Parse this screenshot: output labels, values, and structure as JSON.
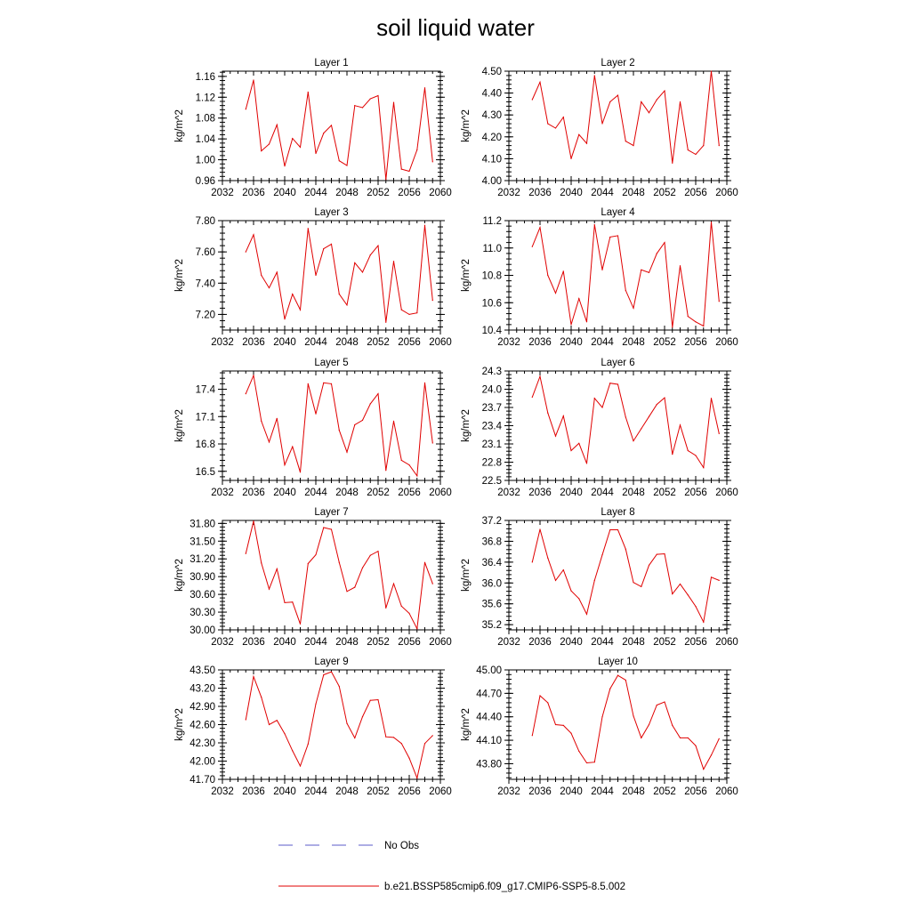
{
  "figure": {
    "title": "soil liquid water"
  },
  "legend": {
    "obs_label": "No Obs",
    "model_label": "b.e21.BSSP585cmip6.f09_g17.CMIP6-SSP5-8.5.002",
    "obs_color": "#5b5bc8",
    "model_color": "#e00000"
  },
  "chart_data": [
    {
      "type": "line",
      "title": "Layer 1",
      "ylabel": "kg/m^2",
      "xlim": [
        2032,
        2060
      ],
      "ylim": [
        0.96,
        1.17
      ],
      "xticks": [
        "2032",
        "2036",
        "2040",
        "2044",
        "2048",
        "2052",
        "2056",
        "2060"
      ],
      "yticks": [
        "0.96",
        "1.00",
        "1.04",
        "1.08",
        "1.12",
        "1.16"
      ],
      "x": [
        2035,
        2036,
        2037,
        2038,
        2039,
        2040,
        2041,
        2042,
        2043,
        2044,
        2045,
        2046,
        2047,
        2048,
        2049,
        2050,
        2051,
        2052,
        2053,
        2054,
        2055,
        2056,
        2057,
        2058,
        2059
      ],
      "values": [
        1.097,
        1.153,
        1.017,
        1.03,
        1.067,
        0.988,
        1.041,
        1.024,
        1.13,
        1.012,
        1.051,
        1.066,
        0.998,
        0.989,
        1.104,
        1.1,
        1.117,
        1.123,
        0.962,
        1.11,
        0.982,
        0.978,
        1.019,
        1.138,
        0.996
      ]
    },
    {
      "type": "line",
      "title": "Layer 2",
      "ylabel": "kg/m^2",
      "xlim": [
        2032,
        2060
      ],
      "ylim": [
        4.0,
        4.5
      ],
      "xticks": [
        "2032",
        "2036",
        "2040",
        "2044",
        "2048",
        "2052",
        "2056",
        "2060"
      ],
      "yticks": [
        "4.00",
        "4.10",
        "4.20",
        "4.30",
        "4.40",
        "4.50"
      ],
      "x": [
        2035,
        2036,
        2037,
        2038,
        2039,
        2040,
        2041,
        2042,
        2043,
        2044,
        2045,
        2046,
        2047,
        2048,
        2049,
        2050,
        2051,
        2052,
        2053,
        2054,
        2055,
        2056,
        2057,
        2058,
        2059
      ],
      "values": [
        4.37,
        4.45,
        4.26,
        4.24,
        4.29,
        4.1,
        4.21,
        4.17,
        4.48,
        4.26,
        4.36,
        4.39,
        4.18,
        4.16,
        4.36,
        4.31,
        4.37,
        4.41,
        4.08,
        4.36,
        4.14,
        4.12,
        4.16,
        4.5,
        4.16
      ]
    },
    {
      "type": "line",
      "title": "Layer 3",
      "ylabel": "kg/m^2",
      "xlim": [
        2032,
        2060
      ],
      "ylim": [
        7.1,
        7.8
      ],
      "xticks": [
        "2032",
        "2036",
        "2040",
        "2044",
        "2048",
        "2052",
        "2056",
        "2060"
      ],
      "yticks": [
        "7.20",
        "7.40",
        "7.60",
        "7.80"
      ],
      "x": [
        2035,
        2036,
        2037,
        2038,
        2039,
        2040,
        2041,
        2042,
        2043,
        2044,
        2045,
        2046,
        2047,
        2048,
        2049,
        2050,
        2051,
        2052,
        2053,
        2054,
        2055,
        2056,
        2057,
        2058,
        2059
      ],
      "values": [
        7.6,
        7.71,
        7.45,
        7.37,
        7.47,
        7.17,
        7.33,
        7.23,
        7.75,
        7.45,
        7.62,
        7.65,
        7.33,
        7.26,
        7.53,
        7.47,
        7.58,
        7.64,
        7.15,
        7.54,
        7.23,
        7.2,
        7.21,
        7.77,
        7.29
      ]
    },
    {
      "type": "line",
      "title": "Layer 4",
      "ylabel": "kg/m^2",
      "xlim": [
        2032,
        2060
      ],
      "ylim": [
        10.4,
        11.2
      ],
      "xticks": [
        "2032",
        "2036",
        "2040",
        "2044",
        "2048",
        "2052",
        "2056",
        "2060"
      ],
      "yticks": [
        "10.4",
        "10.6",
        "10.8",
        "11.0",
        "11.2"
      ],
      "x": [
        2035,
        2036,
        2037,
        2038,
        2039,
        2040,
        2041,
        2042,
        2043,
        2044,
        2045,
        2046,
        2047,
        2048,
        2049,
        2050,
        2051,
        2052,
        2053,
        2054,
        2055,
        2056,
        2057,
        2058,
        2059
      ],
      "values": [
        11.01,
        11.15,
        10.8,
        10.67,
        10.83,
        10.44,
        10.63,
        10.46,
        11.17,
        10.84,
        11.08,
        11.09,
        10.69,
        10.56,
        10.84,
        10.82,
        10.96,
        11.04,
        10.42,
        10.87,
        10.5,
        10.46,
        10.43,
        11.19,
        10.61
      ]
    },
    {
      "type": "line",
      "title": "Layer 5",
      "ylabel": "kg/m^2",
      "xlim": [
        2032,
        2060
      ],
      "ylim": [
        16.4,
        17.6
      ],
      "xticks": [
        "2032",
        "2036",
        "2040",
        "2044",
        "2048",
        "2052",
        "2056",
        "2060"
      ],
      "yticks": [
        "16.5",
        "16.8",
        "17.1",
        "17.4"
      ],
      "x": [
        2035,
        2036,
        2037,
        2038,
        2039,
        2040,
        2041,
        2042,
        2043,
        2044,
        2045,
        2046,
        2047,
        2048,
        2049,
        2050,
        2051,
        2052,
        2053,
        2054,
        2055,
        2056,
        2057,
        2058,
        2059
      ],
      "values": [
        17.35,
        17.55,
        17.05,
        16.82,
        17.08,
        16.57,
        16.77,
        16.49,
        17.46,
        17.13,
        17.47,
        17.46,
        16.95,
        16.71,
        17.01,
        17.06,
        17.24,
        17.35,
        16.51,
        17.05,
        16.62,
        16.57,
        16.45,
        17.47,
        16.81
      ]
    },
    {
      "type": "line",
      "title": "Layer 6",
      "ylabel": "kg/m^2",
      "xlim": [
        2032,
        2060
      ],
      "ylim": [
        22.5,
        24.3
      ],
      "xticks": [
        "2032",
        "2036",
        "2040",
        "2044",
        "2048",
        "2052",
        "2056",
        "2060"
      ],
      "yticks": [
        "22.5",
        "22.8",
        "23.1",
        "23.4",
        "23.7",
        "24.0",
        "24.3"
      ],
      "x": [
        2035,
        2036,
        2037,
        2038,
        2039,
        2040,
        2041,
        2042,
        2043,
        2044,
        2045,
        2046,
        2047,
        2048,
        2049,
        2050,
        2051,
        2052,
        2053,
        2054,
        2055,
        2056,
        2057,
        2058,
        2059
      ],
      "values": [
        23.87,
        24.21,
        23.61,
        23.23,
        23.56,
        22.99,
        23.11,
        22.78,
        23.85,
        23.7,
        24.1,
        24.08,
        23.54,
        23.15,
        23.35,
        23.55,
        23.75,
        23.86,
        22.93,
        23.41,
        22.99,
        22.91,
        22.71,
        23.85,
        23.27
      ]
    },
    {
      "type": "line",
      "title": "Layer 7",
      "ylabel": "kg/m^2",
      "xlim": [
        2032,
        2060
      ],
      "ylim": [
        30.0,
        31.85
      ],
      "xticks": [
        "2032",
        "2036",
        "2040",
        "2044",
        "2048",
        "2052",
        "2056",
        "2060"
      ],
      "yticks": [
        "30.00",
        "30.30",
        "30.60",
        "30.90",
        "31.20",
        "31.50",
        "31.80"
      ],
      "x": [
        2035,
        2036,
        2037,
        2038,
        2039,
        2040,
        2041,
        2042,
        2043,
        2044,
        2045,
        2046,
        2047,
        2048,
        2049,
        2050,
        2051,
        2052,
        2053,
        2054,
        2055,
        2056,
        2057,
        2058,
        2059
      ],
      "values": [
        31.29,
        31.84,
        31.13,
        30.69,
        31.03,
        30.46,
        30.47,
        30.1,
        31.12,
        31.27,
        31.73,
        31.7,
        31.14,
        30.65,
        30.72,
        31.05,
        31.26,
        31.33,
        30.37,
        30.78,
        30.4,
        30.28,
        30.02,
        31.14,
        30.78
      ]
    },
    {
      "type": "line",
      "title": "Layer 8",
      "ylabel": "kg/m^2",
      "xlim": [
        2032,
        2060
      ],
      "ylim": [
        35.1,
        37.2
      ],
      "xticks": [
        "2032",
        "2036",
        "2040",
        "2044",
        "2048",
        "2052",
        "2056",
        "2060"
      ],
      "yticks": [
        "35.2",
        "35.6",
        "36.0",
        "36.4",
        "36.8",
        "37.2"
      ],
      "x": [
        2035,
        2036,
        2037,
        2038,
        2039,
        2040,
        2041,
        2042,
        2043,
        2044,
        2045,
        2046,
        2047,
        2048,
        2049,
        2050,
        2051,
        2052,
        2053,
        2054,
        2055,
        2056,
        2057,
        2058,
        2059
      ],
      "values": [
        36.4,
        37.03,
        36.48,
        36.05,
        36.25,
        35.85,
        35.7,
        35.4,
        36.05,
        36.54,
        37.02,
        37.02,
        36.65,
        36.01,
        35.93,
        36.34,
        36.55,
        36.56,
        35.79,
        35.98,
        35.77,
        35.55,
        35.25,
        36.11,
        36.05
      ]
    },
    {
      "type": "line",
      "title": "Layer 9",
      "ylabel": "kg/m^2",
      "xlim": [
        2032,
        2060
      ],
      "ylim": [
        41.7,
        43.5
      ],
      "xticks": [
        "2032",
        "2036",
        "2040",
        "2044",
        "2048",
        "2052",
        "2056",
        "2060"
      ],
      "yticks": [
        "41.70",
        "42.00",
        "42.30",
        "42.60",
        "42.90",
        "43.20",
        "43.50"
      ],
      "x": [
        2035,
        2036,
        2037,
        2038,
        2039,
        2040,
        2041,
        2042,
        2043,
        2044,
        2045,
        2046,
        2047,
        2048,
        2049,
        2050,
        2051,
        2052,
        2053,
        2054,
        2055,
        2056,
        2057,
        2058,
        2059
      ],
      "values": [
        42.68,
        43.39,
        43.05,
        42.6,
        42.67,
        42.45,
        42.17,
        41.92,
        42.28,
        42.94,
        43.42,
        43.47,
        43.23,
        42.62,
        42.38,
        42.73,
        43.0,
        43.01,
        42.4,
        42.39,
        42.29,
        42.05,
        41.72,
        42.29,
        42.42
      ]
    },
    {
      "type": "line",
      "title": "Layer 10",
      "ylabel": "kg/m^2",
      "xlim": [
        2032,
        2060
      ],
      "ylim": [
        43.6,
        45.0
      ],
      "xticks": [
        "2032",
        "2036",
        "2040",
        "2044",
        "2048",
        "2052",
        "2056",
        "2060"
      ],
      "yticks": [
        "43.80",
        "44.10",
        "44.40",
        "44.70",
        "45.00"
      ],
      "x": [
        2035,
        2036,
        2037,
        2038,
        2039,
        2040,
        2041,
        2042,
        2043,
        2044,
        2045,
        2046,
        2047,
        2048,
        2049,
        2050,
        2051,
        2052,
        2053,
        2054,
        2055,
        2056,
        2057,
        2058,
        2059
      ],
      "values": [
        44.16,
        44.67,
        44.58,
        44.3,
        44.29,
        44.19,
        43.96,
        43.81,
        43.82,
        44.4,
        44.76,
        44.93,
        44.87,
        44.41,
        44.13,
        44.3,
        44.55,
        44.59,
        44.29,
        44.13,
        44.13,
        44.03,
        43.73,
        43.91,
        44.12
      ]
    }
  ]
}
